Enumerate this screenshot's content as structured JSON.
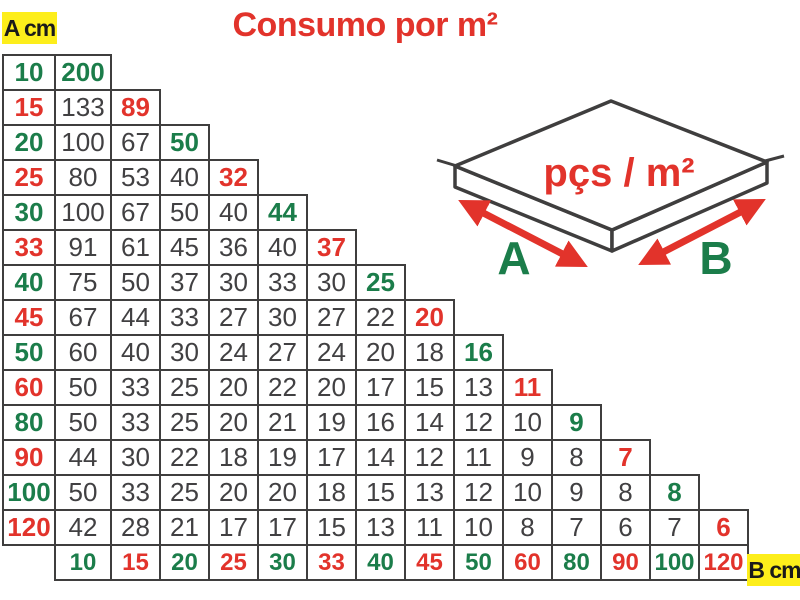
{
  "title": "Consumo por m²",
  "corner_labels": {
    "a": "A cm",
    "b": "B cm"
  },
  "diagram": {
    "caption": "pçs / m²",
    "side_a_label": "A",
    "side_b_label": "B"
  },
  "colors": {
    "green": "#1b7d4a",
    "red": "#e2332b",
    "dark": "#414042",
    "grid": "#3f3e3e",
    "yellow": "#fdee1b"
  },
  "chart_data": {
    "type": "table",
    "title": "Consumo por m²",
    "unit": "pçs / m²",
    "b_values_cm": [
      10,
      15,
      20,
      25,
      30,
      33,
      40,
      45,
      50,
      60,
      80,
      90,
      100,
      120
    ],
    "b_value_colors": [
      "green",
      "red",
      "green",
      "red",
      "green",
      "red",
      "green",
      "red",
      "green",
      "red",
      "green",
      "red",
      "green",
      "red"
    ],
    "rows": [
      {
        "a_cm": 10,
        "color": "green",
        "values": [
          200
        ]
      },
      {
        "a_cm": 15,
        "color": "red",
        "values": [
          133,
          89
        ]
      },
      {
        "a_cm": 20,
        "color": "green",
        "values": [
          100,
          67,
          50
        ]
      },
      {
        "a_cm": 25,
        "color": "red",
        "values": [
          80,
          53,
          40,
          32
        ]
      },
      {
        "a_cm": 30,
        "color": "green",
        "values": [
          100,
          67,
          50,
          40,
          44
        ]
      },
      {
        "a_cm": 33,
        "color": "red",
        "values": [
          91,
          61,
          45,
          36,
          40,
          37
        ]
      },
      {
        "a_cm": 40,
        "color": "green",
        "values": [
          75,
          50,
          37,
          30,
          33,
          30,
          25
        ]
      },
      {
        "a_cm": 45,
        "color": "red",
        "values": [
          67,
          44,
          33,
          27,
          30,
          27,
          22,
          20
        ]
      },
      {
        "a_cm": 50,
        "color": "green",
        "values": [
          60,
          40,
          30,
          24,
          27,
          24,
          20,
          18,
          16
        ]
      },
      {
        "a_cm": 60,
        "color": "red",
        "values": [
          50,
          33,
          25,
          20,
          22,
          20,
          17,
          15,
          13,
          11
        ]
      },
      {
        "a_cm": 80,
        "color": "green",
        "values": [
          50,
          33,
          25,
          20,
          21,
          19,
          16,
          14,
          12,
          10,
          9
        ]
      },
      {
        "a_cm": 90,
        "color": "red",
        "values": [
          44,
          30,
          22,
          18,
          19,
          17,
          14,
          12,
          11,
          9,
          8,
          7
        ]
      },
      {
        "a_cm": 100,
        "color": "green",
        "values": [
          50,
          33,
          25,
          20,
          20,
          18,
          15,
          13,
          12,
          10,
          9,
          8,
          8
        ]
      },
      {
        "a_cm": 120,
        "color": "red",
        "values": [
          42,
          28,
          21,
          17,
          17,
          15,
          13,
          11,
          10,
          8,
          7,
          6,
          7,
          6
        ]
      }
    ]
  }
}
